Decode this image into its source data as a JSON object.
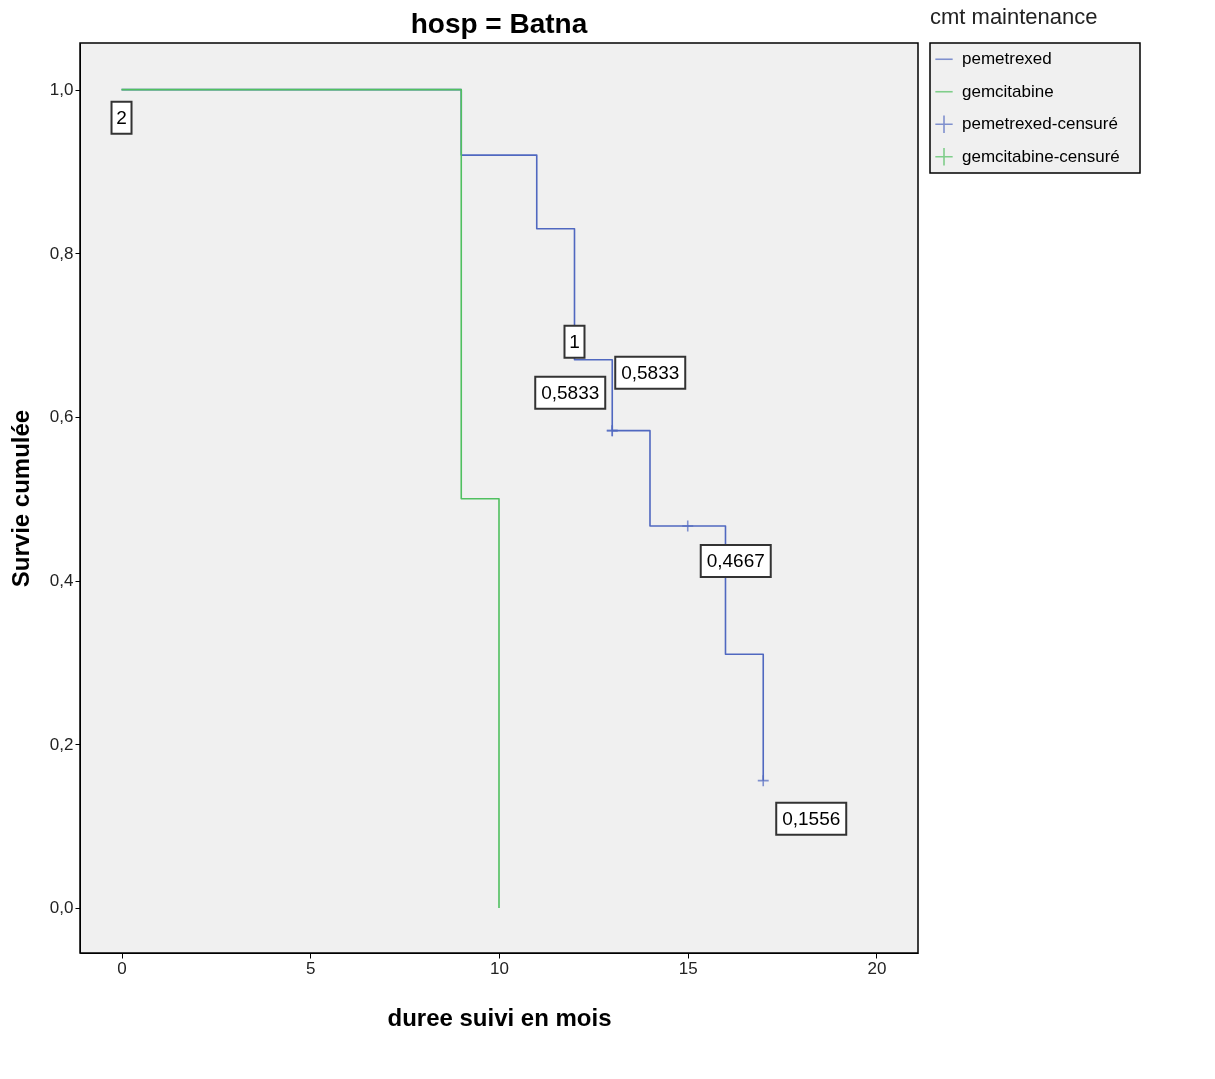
{
  "chart_data": {
    "type": "step",
    "title": "hosp = Batna",
    "xlabel": "duree suivi en mois",
    "ylabel": "Survie cumulée",
    "legend_title": "cmt maintenance",
    "legend": "top right",
    "xlim": [
      -1.1,
      21.1
    ],
    "ylim": [
      -0.055,
      1.057
    ],
    "xticks": [
      0,
      5,
      10,
      15,
      20
    ],
    "yticks": [
      {
        "value": 0,
        "label": "0,0"
      },
      {
        "value": 0.2,
        "label": "0,2"
      },
      {
        "value": 0.4,
        "label": "0,4"
      },
      {
        "value": 0.6,
        "label": "0,6"
      },
      {
        "value": 0.8,
        "label": "0,8"
      },
      {
        "value": 1,
        "label": "1,0"
      }
    ],
    "series": [
      {
        "name": "pemetrexed",
        "color": "#5068c0",
        "x": [
          0,
          9,
          11,
          12,
          13,
          14,
          16,
          17
        ],
        "values": [
          1,
          0.92,
          0.83,
          0.67,
          0.5833,
          0.4667,
          0.31,
          0.1556
        ]
      },
      {
        "name": "gemcitabine",
        "color": "#50c060",
        "x": [
          0,
          9,
          10
        ],
        "values": [
          1,
          0.5,
          0
        ]
      },
      {
        "name": "pemetrexed-censuré",
        "type": "scatter",
        "color": "#5068c0",
        "marker": "cross",
        "x": [
          13,
          13,
          15,
          17
        ],
        "values": [
          0.5833,
          0.5833,
          0.4667,
          0.1556
        ]
      },
      {
        "name": "gemcitabine-censuré",
        "type": "scatter",
        "color": "#50c060",
        "marker": "cross"
      }
    ],
    "annotations": [
      {
        "text": "2",
        "x": 0,
        "y": 1
      },
      {
        "text": "1",
        "x": 12,
        "y": 0.67
      },
      {
        "text": "0,5833",
        "x": 13,
        "y": 0.5833
      },
      {
        "text": "0,5833",
        "x": 13,
        "y": 0.5833
      },
      {
        "text": "0,4667",
        "x": 15,
        "y": 0.4667
      },
      {
        "text": "0,1556",
        "x": 17,
        "y": 0.1556
      }
    ]
  }
}
